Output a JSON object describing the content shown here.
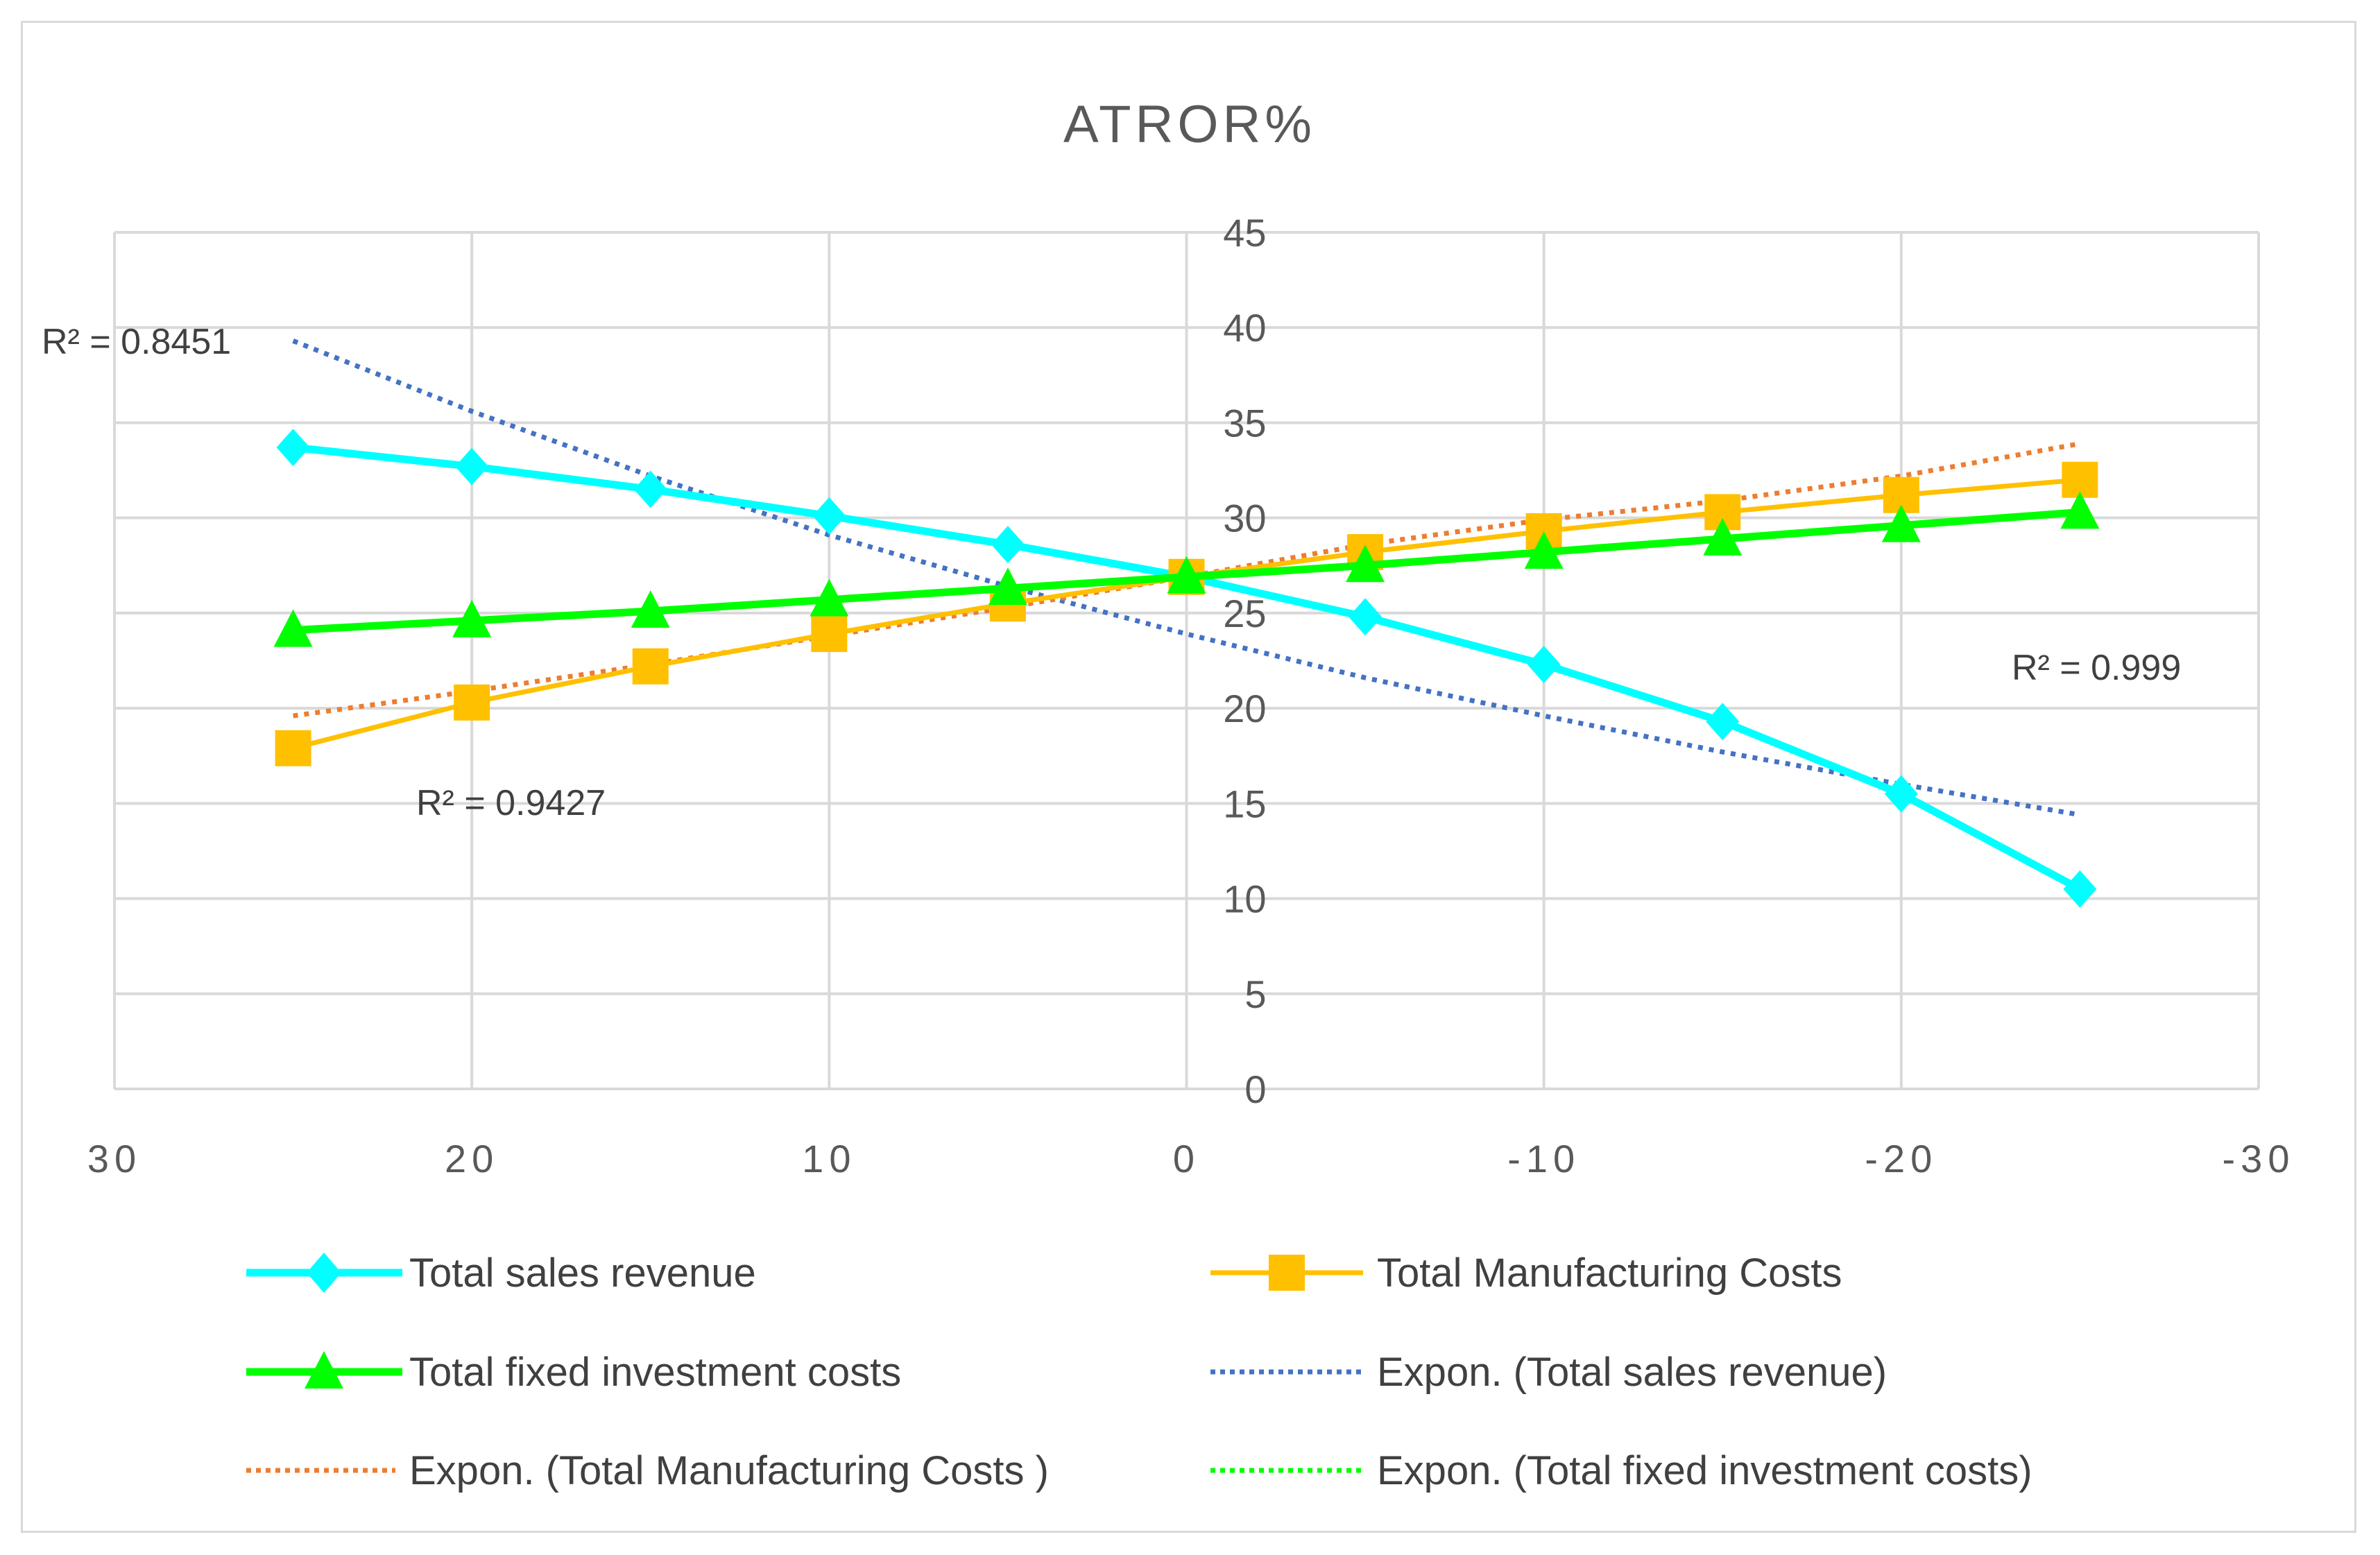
{
  "chart_data": {
    "type": "line",
    "title": "ATROR%",
    "x": [
      25,
      20,
      15,
      10,
      5,
      0,
      -5,
      -10,
      -15,
      -20,
      -25
    ],
    "xlim": [
      30,
      -30
    ],
    "xticks": [
      "30",
      "20",
      "10",
      "0",
      "-10",
      "-20",
      "-30"
    ],
    "xtick_values": [
      30,
      20,
      10,
      0,
      -10,
      -20,
      -30
    ],
    "ylim": [
      0,
      45
    ],
    "yticks": [
      "0",
      "5",
      "10",
      "15",
      "20",
      "25",
      "30",
      "35",
      "40",
      "45"
    ],
    "ytick_values": [
      0,
      5,
      10,
      15,
      20,
      25,
      30,
      35,
      40,
      45
    ],
    "grid": true,
    "legend_position": "bottom",
    "series": [
      {
        "name": "Total sales revenue",
        "color": "#00ffff",
        "marker": "diamond",
        "values": [
          33.7,
          32.7,
          31.5,
          30.1,
          28.6,
          26.9,
          24.8,
          22.3,
          19.3,
          15.5,
          10.5
        ]
      },
      {
        "name": "Total Manufacturing Costs",
        "color": "#ffc000",
        "marker": "square",
        "values": [
          17.9,
          20.3,
          22.2,
          23.9,
          25.5,
          26.9,
          28.2,
          29.3,
          30.3,
          31.2,
          32.0
        ]
      },
      {
        "name": "Total fixed investment costs",
        "color": "#00ff00",
        "marker": "triangle",
        "values": [
          24.1,
          24.6,
          25.1,
          25.7,
          26.3,
          26.9,
          27.5,
          28.2,
          28.9,
          29.6,
          30.3
        ]
      }
    ],
    "trendlines": [
      {
        "name": "Expon. (Total sales revenue)",
        "color": "#4472c4",
        "values": [
          39.3,
          35.6,
          32.2,
          29.1,
          26.4,
          23.9,
          21.6,
          19.6,
          17.7,
          16.0,
          14.4
        ]
      },
      {
        "name": "Expon. (Total Manufacturing Costs )",
        "color": "#ed7d31",
        "values": [
          19.6,
          20.9,
          22.3,
          23.8,
          25.3,
          26.9,
          28.6,
          29.9,
          30.9,
          32.2,
          33.9
        ]
      },
      {
        "name": "Expon. (Total fixed investment costs)",
        "color": "#00ff00",
        "values": []
      }
    ],
    "annotations": [
      {
        "text": "R² = 0.8451"
      },
      {
        "text": "R² = 0.9427"
      },
      {
        "text": "R² = 0.999"
      }
    ]
  }
}
